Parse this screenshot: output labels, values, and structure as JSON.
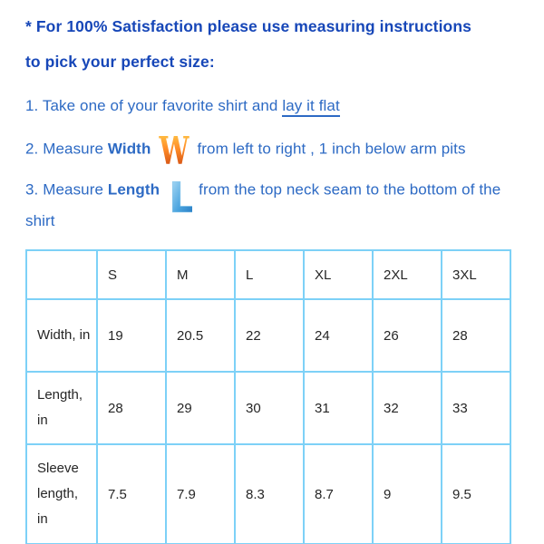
{
  "heading": {
    "line1": "* For 100% Satisfaction please use measuring instructions",
    "line2": "to pick your perfect size:"
  },
  "steps": {
    "step1": {
      "prefix": "1. Take one of your favorite shirt and ",
      "underlined": "lay it flat"
    },
    "step2": {
      "prefix": "2. Measure ",
      "keyword": "Width",
      "icon": "width-letter-icon",
      "suffix": "from left to right , 1 inch below arm pits"
    },
    "step3": {
      "prefix": "3. Measure ",
      "keyword": "Length",
      "icon": "length-letter-icon",
      "suffix": "from the top neck seam to the bottom of the shirt"
    }
  },
  "table": {
    "col_headers": [
      "S",
      "M",
      "L",
      "XL",
      "2XL",
      "3XL"
    ],
    "rows": [
      {
        "label": "Width, in",
        "values": [
          "19",
          "20.5",
          "22",
          "24",
          "26",
          "28"
        ]
      },
      {
        "label": "Length, in",
        "values": [
          "28",
          "29",
          "30",
          "31",
          "32",
          "33"
        ]
      },
      {
        "label": "Sleeve length, in",
        "values": [
          "7.5",
          "7.9",
          "8.3",
          "8.7",
          "9",
          "9.5"
        ]
      }
    ]
  },
  "colors": {
    "heading_blue": "#1747b8",
    "body_blue": "#2d6ac4",
    "table_border_blue": "#7dd1f7",
    "width_icon_orange": "#ff8c28",
    "length_icon_blue": "#2a85cf"
  }
}
